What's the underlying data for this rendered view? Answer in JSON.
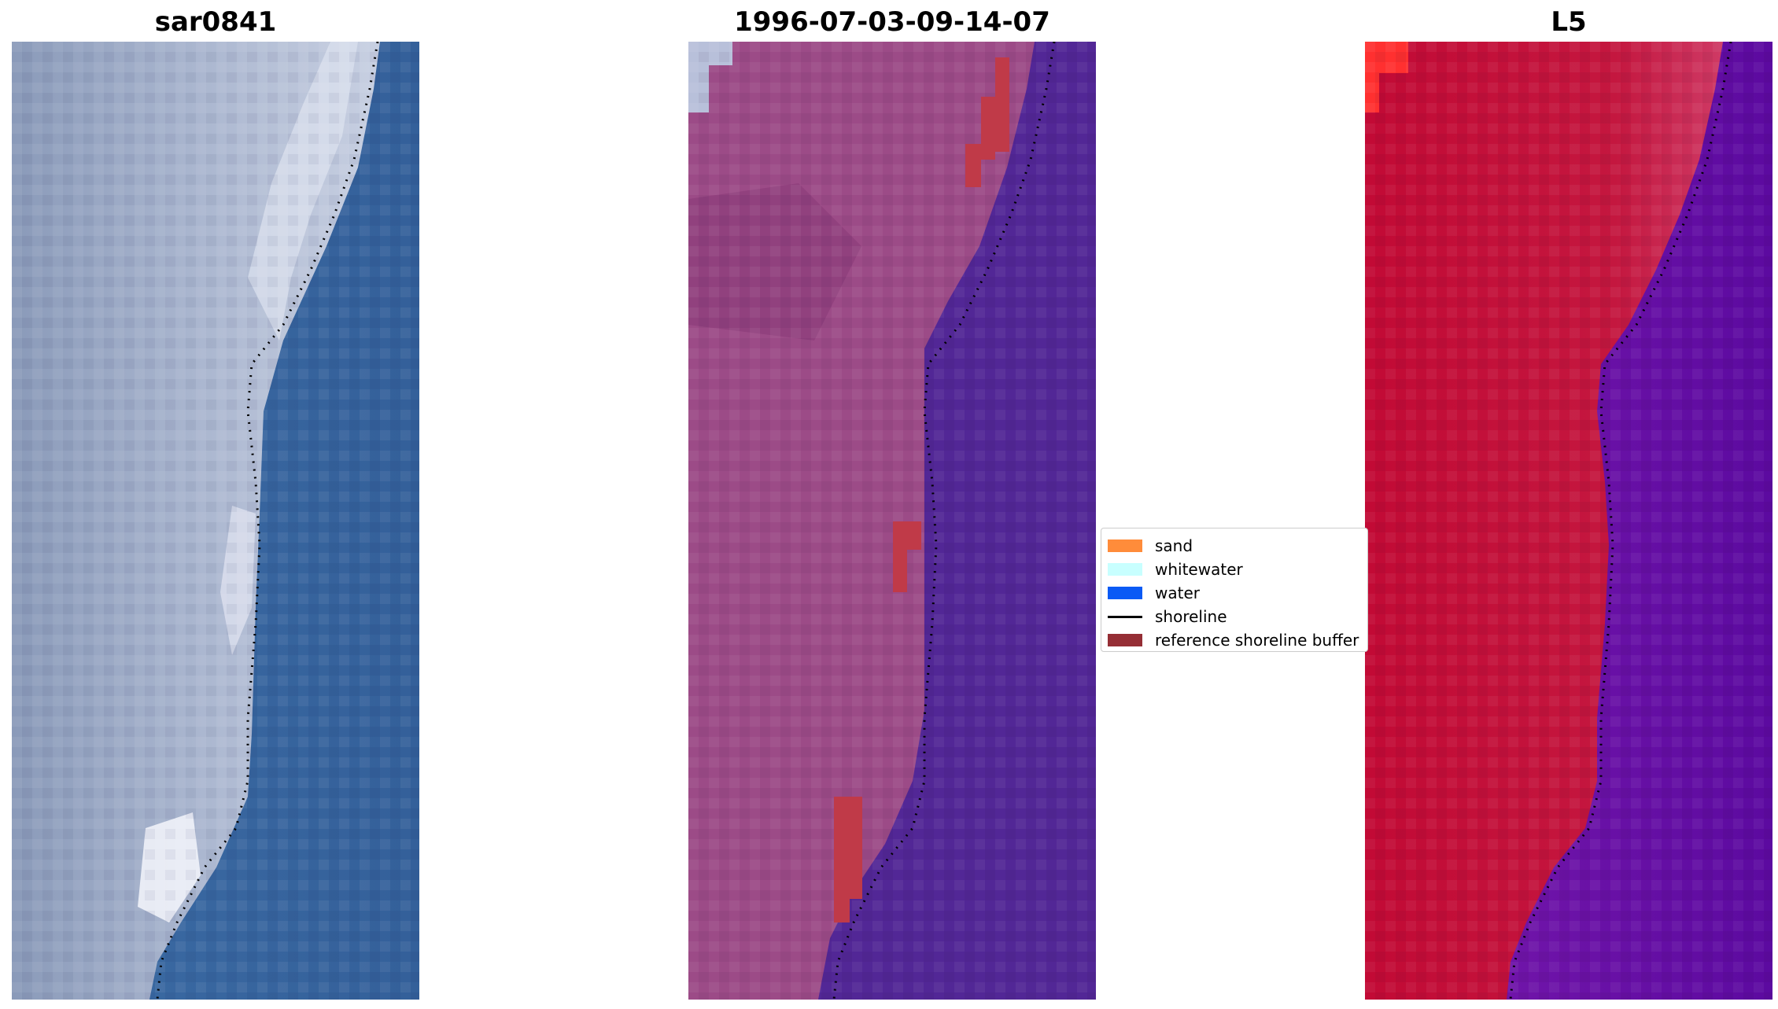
{
  "panels": [
    {
      "title": "sar0841"
    },
    {
      "title": "1996-07-03-09-14-07"
    },
    {
      "title": "L5"
    }
  ],
  "legend": {
    "items": [
      {
        "label": "sand",
        "color": "#ff8c3a",
        "kind": "patch"
      },
      {
        "label": "whitewater",
        "color": "#c8ffff",
        "kind": "patch"
      },
      {
        "label": "water",
        "color": "#0a5af5",
        "kind": "patch"
      },
      {
        "label": "shoreline",
        "color": "#000000",
        "kind": "line"
      },
      {
        "label": "reference shoreline buffer",
        "color": "#952e35",
        "kind": "patch"
      }
    ]
  },
  "colors": {
    "rgb_land": "#a4b3cd",
    "rgb_water": "#3a68a0",
    "classified_land": "#9c4b87",
    "classified_water": "#522796",
    "classified_buffer": "#c03a48",
    "false_color_land": "#c41540",
    "false_color_water": "#6a11a6"
  }
}
